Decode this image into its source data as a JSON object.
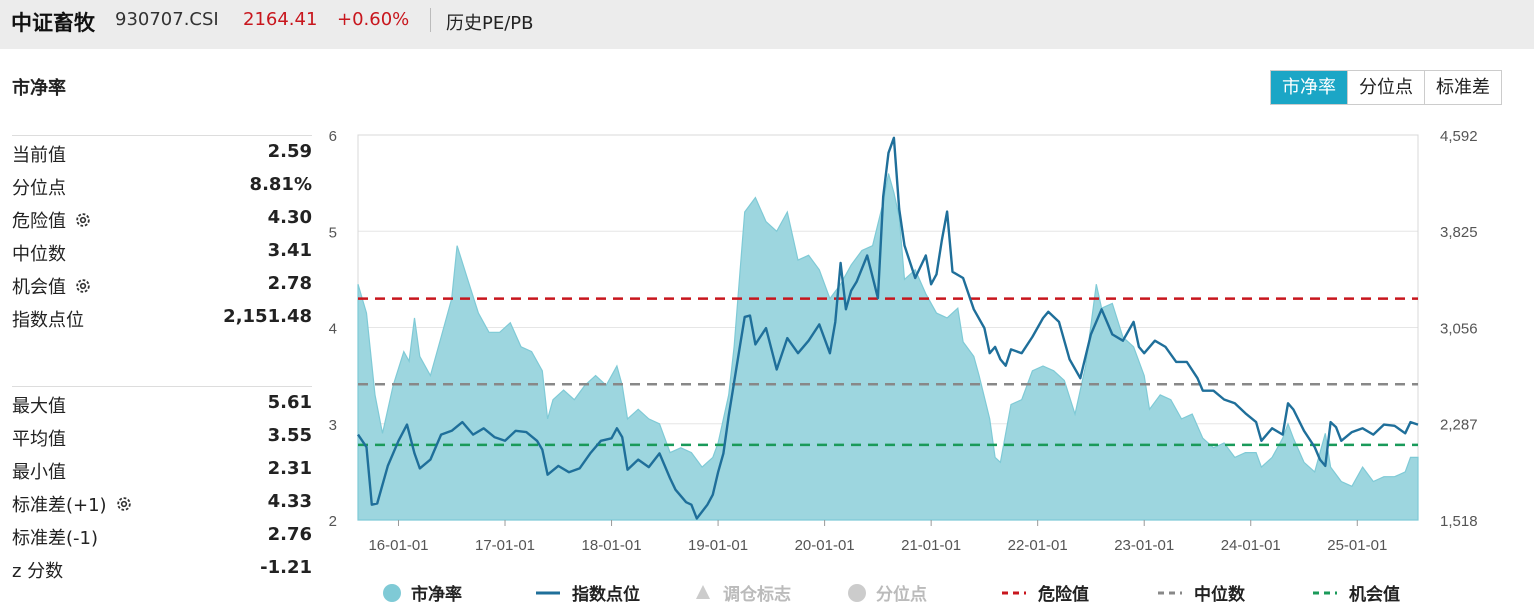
{
  "header": {
    "name": "中证畜牧",
    "code": "930707.CSI",
    "price": "2164.41",
    "change": "+0.60%",
    "tab": "历史PE/PB"
  },
  "section_title": "市净率",
  "buttons": [
    {
      "label": "市净率",
      "active": true
    },
    {
      "label": "分位点",
      "active": false
    },
    {
      "label": "标准差",
      "active": false
    }
  ],
  "stats_top": [
    {
      "label": "当前值",
      "value": "2.59",
      "gear": false
    },
    {
      "label": "分位点",
      "value": "8.81%",
      "gear": false
    },
    {
      "label": "危险值",
      "value": "4.30",
      "gear": true
    },
    {
      "label": "中位数",
      "value": "3.41",
      "gear": false
    },
    {
      "label": "机会值",
      "value": "2.78",
      "gear": true
    },
    {
      "label": "指数点位",
      "value": "2,151.48",
      "gear": false
    }
  ],
  "stats_bottom": [
    {
      "label": "最大值",
      "value": "5.61",
      "gear": false
    },
    {
      "label": "平均值",
      "value": "3.55",
      "gear": false
    },
    {
      "label": "最小值",
      "value": "2.31",
      "gear": false
    },
    {
      "label": "标准差(+1)",
      "value": "4.33",
      "gear": true
    },
    {
      "label": "标准差(-1)",
      "value": "2.76",
      "gear": false
    },
    {
      "label": "z 分数",
      "value": "-1.21",
      "gear": false
    }
  ],
  "legend": [
    {
      "label": "市净率",
      "kind": "circle",
      "color": "#7fcad6",
      "dim": false
    },
    {
      "label": "指数点位",
      "kind": "line",
      "color": "#1f6f9a",
      "dim": false
    },
    {
      "label": "调仓标志",
      "kind": "triangle",
      "color": "#cccccc",
      "dim": true
    },
    {
      "label": "分位点",
      "kind": "circle",
      "color": "#cccccc",
      "dim": true
    },
    {
      "label": "危险值",
      "kind": "dash",
      "color": "#c8161d",
      "dim": false
    },
    {
      "label": "中位数",
      "kind": "dash",
      "color": "#888888",
      "dim": false
    },
    {
      "label": "机会值",
      "kind": "dash",
      "color": "#1a9a5a",
      "dim": false
    }
  ],
  "chart_data": {
    "type": "area",
    "x_ticks": [
      "16-01-01",
      "17-01-01",
      "18-01-01",
      "19-01-01",
      "20-01-01",
      "21-01-01",
      "22-01-01",
      "23-01-01",
      "24-01-01",
      "25-01-01"
    ],
    "y_left_ticks": [
      "2",
      "3",
      "4",
      "5",
      "6"
    ],
    "y_left_range": [
      2,
      6
    ],
    "y_right_ticks": [
      "1,518",
      "2,287",
      "3,056",
      "3,825",
      "4,592"
    ],
    "y_right_range": [
      1518,
      4592
    ],
    "x_range": [
      2015.62,
      2025.57
    ],
    "reference_lines": [
      {
        "name": "危险值",
        "value": 4.3,
        "color": "#c8161d"
      },
      {
        "name": "中位数",
        "value": 3.41,
        "color": "#888888"
      },
      {
        "name": "机会值",
        "value": 2.78,
        "color": "#1a9a5a"
      }
    ],
    "series": [
      {
        "name": "市净率",
        "axis": "left",
        "color": "#7fcad6",
        "points": [
          [
            2015.62,
            4.45
          ],
          [
            2015.7,
            4.15
          ],
          [
            2015.78,
            3.3
          ],
          [
            2015.85,
            2.9
          ],
          [
            2015.95,
            3.4
          ],
          [
            2016.05,
            3.75
          ],
          [
            2016.1,
            3.65
          ],
          [
            2016.15,
            4.1
          ],
          [
            2016.2,
            3.7
          ],
          [
            2016.3,
            3.5
          ],
          [
            2016.4,
            3.9
          ],
          [
            2016.5,
            4.3
          ],
          [
            2016.55,
            4.85
          ],
          [
            2016.65,
            4.5
          ],
          [
            2016.75,
            4.15
          ],
          [
            2016.85,
            3.95
          ],
          [
            2016.95,
            3.95
          ],
          [
            2017.05,
            4.05
          ],
          [
            2017.15,
            3.8
          ],
          [
            2017.25,
            3.75
          ],
          [
            2017.35,
            3.55
          ],
          [
            2017.4,
            3.05
          ],
          [
            2017.45,
            3.25
          ],
          [
            2017.55,
            3.35
          ],
          [
            2017.65,
            3.25
          ],
          [
            2017.75,
            3.4
          ],
          [
            2017.85,
            3.5
          ],
          [
            2017.95,
            3.4
          ],
          [
            2018.05,
            3.6
          ],
          [
            2018.1,
            3.4
          ],
          [
            2018.15,
            3.05
          ],
          [
            2018.25,
            3.15
          ],
          [
            2018.35,
            3.05
          ],
          [
            2018.45,
            3.0
          ],
          [
            2018.55,
            2.7
          ],
          [
            2018.65,
            2.75
          ],
          [
            2018.75,
            2.7
          ],
          [
            2018.85,
            2.55
          ],
          [
            2018.95,
            2.65
          ],
          [
            2019.0,
            2.8
          ],
          [
            2019.05,
            3.05
          ],
          [
            2019.1,
            3.3
          ],
          [
            2019.15,
            3.8
          ],
          [
            2019.25,
            5.2
          ],
          [
            2019.35,
            5.35
          ],
          [
            2019.45,
            5.1
          ],
          [
            2019.55,
            5.0
          ],
          [
            2019.65,
            5.2
          ],
          [
            2019.75,
            4.7
          ],
          [
            2019.85,
            4.75
          ],
          [
            2019.95,
            4.6
          ],
          [
            2020.05,
            4.3
          ],
          [
            2020.15,
            4.45
          ],
          [
            2020.25,
            4.65
          ],
          [
            2020.35,
            4.8
          ],
          [
            2020.45,
            4.85
          ],
          [
            2020.55,
            5.3
          ],
          [
            2020.6,
            5.6
          ],
          [
            2020.65,
            5.4
          ],
          [
            2020.7,
            5.15
          ],
          [
            2020.75,
            4.5
          ],
          [
            2020.85,
            4.6
          ],
          [
            2020.95,
            4.35
          ],
          [
            2021.05,
            4.15
          ],
          [
            2021.15,
            4.1
          ],
          [
            2021.25,
            4.2
          ],
          [
            2021.3,
            3.85
          ],
          [
            2021.4,
            3.7
          ],
          [
            2021.45,
            3.5
          ],
          [
            2021.55,
            3.05
          ],
          [
            2021.6,
            2.65
          ],
          [
            2021.65,
            2.6
          ],
          [
            2021.7,
            2.9
          ],
          [
            2021.75,
            3.2
          ],
          [
            2021.85,
            3.25
          ],
          [
            2021.95,
            3.55
          ],
          [
            2022.05,
            3.6
          ],
          [
            2022.15,
            3.55
          ],
          [
            2022.25,
            3.45
          ],
          [
            2022.35,
            3.1
          ],
          [
            2022.45,
            3.6
          ],
          [
            2022.55,
            4.45
          ],
          [
            2022.6,
            4.2
          ],
          [
            2022.7,
            4.25
          ],
          [
            2022.8,
            3.9
          ],
          [
            2022.9,
            3.8
          ],
          [
            2023.0,
            3.5
          ],
          [
            2023.05,
            3.15
          ],
          [
            2023.15,
            3.3
          ],
          [
            2023.25,
            3.25
          ],
          [
            2023.35,
            3.05
          ],
          [
            2023.45,
            3.1
          ],
          [
            2023.55,
            2.85
          ],
          [
            2023.65,
            2.75
          ],
          [
            2023.75,
            2.8
          ],
          [
            2023.85,
            2.65
          ],
          [
            2023.95,
            2.7
          ],
          [
            2024.05,
            2.7
          ],
          [
            2024.1,
            2.55
          ],
          [
            2024.2,
            2.65
          ],
          [
            2024.3,
            2.85
          ],
          [
            2024.35,
            3.0
          ],
          [
            2024.4,
            2.85
          ],
          [
            2024.5,
            2.6
          ],
          [
            2024.6,
            2.5
          ],
          [
            2024.7,
            2.9
          ],
          [
            2024.75,
            2.55
          ],
          [
            2024.85,
            2.4
          ],
          [
            2024.95,
            2.35
          ],
          [
            2025.05,
            2.55
          ],
          [
            2025.15,
            2.4
          ],
          [
            2025.25,
            2.45
          ],
          [
            2025.35,
            2.45
          ],
          [
            2025.45,
            2.5
          ],
          [
            2025.5,
            2.65
          ],
          [
            2025.57,
            2.65
          ]
        ]
      },
      {
        "name": "指数点位",
        "axis": "right",
        "color": "#1f6f9a",
        "points": [
          [
            2015.62,
            2200
          ],
          [
            2015.7,
            2100
          ],
          [
            2015.75,
            1640
          ],
          [
            2015.8,
            1650
          ],
          [
            2015.9,
            1950
          ],
          [
            2016.0,
            2150
          ],
          [
            2016.08,
            2280
          ],
          [
            2016.15,
            2050
          ],
          [
            2016.2,
            1930
          ],
          [
            2016.3,
            2000
          ],
          [
            2016.4,
            2200
          ],
          [
            2016.5,
            2230
          ],
          [
            2016.6,
            2300
          ],
          [
            2016.7,
            2200
          ],
          [
            2016.8,
            2250
          ],
          [
            2016.9,
            2180
          ],
          [
            2017.0,
            2150
          ],
          [
            2017.1,
            2230
          ],
          [
            2017.2,
            2220
          ],
          [
            2017.3,
            2150
          ],
          [
            2017.35,
            2080
          ],
          [
            2017.4,
            1880
          ],
          [
            2017.5,
            1950
          ],
          [
            2017.6,
            1900
          ],
          [
            2017.7,
            1930
          ],
          [
            2017.8,
            2050
          ],
          [
            2017.9,
            2150
          ],
          [
            2018.0,
            2170
          ],
          [
            2018.05,
            2250
          ],
          [
            2018.1,
            2180
          ],
          [
            2018.15,
            1920
          ],
          [
            2018.25,
            2000
          ],
          [
            2018.35,
            1940
          ],
          [
            2018.45,
            2050
          ],
          [
            2018.55,
            1850
          ],
          [
            2018.6,
            1760
          ],
          [
            2018.7,
            1660
          ],
          [
            2018.75,
            1640
          ],
          [
            2018.8,
            1530
          ],
          [
            2018.9,
            1640
          ],
          [
            2018.95,
            1720
          ],
          [
            2019.0,
            1900
          ],
          [
            2019.05,
            2050
          ],
          [
            2019.1,
            2350
          ],
          [
            2019.2,
            2880
          ],
          [
            2019.25,
            3140
          ],
          [
            2019.3,
            3150
          ],
          [
            2019.35,
            2920
          ],
          [
            2019.45,
            3050
          ],
          [
            2019.55,
            2720
          ],
          [
            2019.65,
            2970
          ],
          [
            2019.75,
            2850
          ],
          [
            2019.85,
            2950
          ],
          [
            2019.95,
            3080
          ],
          [
            2020.05,
            2850
          ],
          [
            2020.1,
            3100
          ],
          [
            2020.15,
            3570
          ],
          [
            2020.2,
            3200
          ],
          [
            2020.25,
            3350
          ],
          [
            2020.3,
            3420
          ],
          [
            2020.4,
            3630
          ],
          [
            2020.5,
            3290
          ],
          [
            2020.55,
            4100
          ],
          [
            2020.6,
            4450
          ],
          [
            2020.65,
            4570
          ],
          [
            2020.7,
            4000
          ],
          [
            2020.75,
            3710
          ],
          [
            2020.85,
            3450
          ],
          [
            2020.95,
            3630
          ],
          [
            2021.0,
            3400
          ],
          [
            2021.05,
            3480
          ],
          [
            2021.1,
            3750
          ],
          [
            2021.15,
            3980
          ],
          [
            2021.2,
            3500
          ],
          [
            2021.3,
            3450
          ],
          [
            2021.4,
            3200
          ],
          [
            2021.5,
            3050
          ],
          [
            2021.55,
            2850
          ],
          [
            2021.6,
            2900
          ],
          [
            2021.65,
            2800
          ],
          [
            2021.7,
            2750
          ],
          [
            2021.75,
            2880
          ],
          [
            2021.85,
            2850
          ],
          [
            2021.95,
            2980
          ],
          [
            2022.05,
            3130
          ],
          [
            2022.1,
            3180
          ],
          [
            2022.2,
            3100
          ],
          [
            2022.3,
            2800
          ],
          [
            2022.4,
            2650
          ],
          [
            2022.5,
            3000
          ],
          [
            2022.6,
            3200
          ],
          [
            2022.7,
            3000
          ],
          [
            2022.8,
            2950
          ],
          [
            2022.9,
            3100
          ],
          [
            2022.95,
            2900
          ],
          [
            2023.0,
            2850
          ],
          [
            2023.1,
            2950
          ],
          [
            2023.2,
            2900
          ],
          [
            2023.3,
            2780
          ],
          [
            2023.4,
            2780
          ],
          [
            2023.5,
            2650
          ],
          [
            2023.55,
            2550
          ],
          [
            2023.65,
            2550
          ],
          [
            2023.75,
            2480
          ],
          [
            2023.85,
            2450
          ],
          [
            2023.95,
            2370
          ],
          [
            2024.05,
            2300
          ],
          [
            2024.1,
            2150
          ],
          [
            2024.2,
            2250
          ],
          [
            2024.3,
            2200
          ],
          [
            2024.35,
            2450
          ],
          [
            2024.4,
            2400
          ],
          [
            2024.5,
            2230
          ],
          [
            2024.6,
            2100
          ],
          [
            2024.65,
            2000
          ],
          [
            2024.7,
            1950
          ],
          [
            2024.75,
            2300
          ],
          [
            2024.8,
            2260
          ],
          [
            2024.85,
            2150
          ],
          [
            2024.95,
            2220
          ],
          [
            2025.05,
            2250
          ],
          [
            2025.15,
            2200
          ],
          [
            2025.25,
            2280
          ],
          [
            2025.35,
            2270
          ],
          [
            2025.45,
            2210
          ],
          [
            2025.5,
            2300
          ],
          [
            2025.57,
            2280
          ]
        ]
      }
    ]
  }
}
